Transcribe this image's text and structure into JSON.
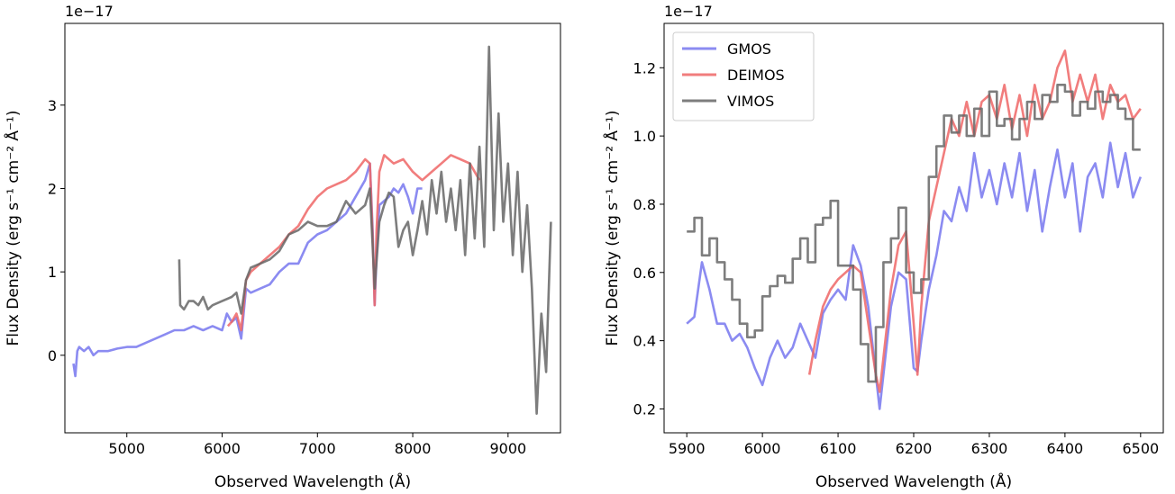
{
  "chart_data": [
    {
      "type": "line",
      "xlabel": "Observed Wavelength (Å)",
      "ylabel": "Flux Density (erg s⁻¹ cm⁻² Å⁻¹)",
      "offset_text": "1e−17",
      "xlim": [
        4350,
        9550
      ],
      "ylim": [
        -0.93,
        3.98
      ],
      "xticks": [
        5000,
        6000,
        7000,
        8000,
        9000
      ],
      "yticks": [
        0,
        1,
        2,
        3
      ],
      "grid": false,
      "series": [
        {
          "name": "GMOS",
          "color": "#7777ee",
          "step": false,
          "x": [
            4440,
            4460,
            4480,
            4500,
            4550,
            4600,
            4650,
            4700,
            4800,
            4900,
            5000,
            5100,
            5200,
            5300,
            5400,
            5500,
            5600,
            5700,
            5800,
            5900,
            6000,
            6050,
            6100,
            6150,
            6200,
            6250,
            6300,
            6400,
            6500,
            6600,
            6700,
            6800,
            6900,
            7000,
            7100,
            7200,
            7300,
            7400,
            7500,
            7550,
            7580,
            7600,
            7620,
            7650,
            7700,
            7750,
            7800,
            7850,
            7900,
            7950,
            8000,
            8050,
            8100
          ],
          "y": [
            -0.1,
            -0.25,
            0.05,
            0.1,
            0.05,
            0.1,
            0.0,
            0.05,
            0.05,
            0.08,
            0.1,
            0.1,
            0.15,
            0.2,
            0.25,
            0.3,
            0.3,
            0.35,
            0.3,
            0.35,
            0.3,
            0.5,
            0.4,
            0.45,
            0.2,
            0.8,
            0.75,
            0.8,
            0.85,
            1.0,
            1.1,
            1.1,
            1.35,
            1.45,
            1.5,
            1.6,
            1.7,
            1.9,
            2.1,
            2.3,
            1.5,
            0.6,
            1.2,
            1.8,
            1.85,
            1.9,
            2.0,
            1.95,
            2.05,
            1.9,
            1.7,
            2.0,
            2.0
          ]
        },
        {
          "name": "DEIMOS",
          "color": "#ee6666",
          "step": false,
          "x": [
            6060,
            6100,
            6150,
            6200,
            6250,
            6300,
            6400,
            6500,
            6600,
            6700,
            6800,
            6900,
            7000,
            7100,
            7200,
            7300,
            7400,
            7500,
            7550,
            7580,
            7600,
            7620,
            7650,
            7700,
            7800,
            7900,
            8000,
            8100,
            8200,
            8300,
            8400,
            8500,
            8600,
            8700
          ],
          "y": [
            0.35,
            0.4,
            0.5,
            0.3,
            0.9,
            1.0,
            1.1,
            1.2,
            1.3,
            1.45,
            1.55,
            1.75,
            1.9,
            2.0,
            2.05,
            2.1,
            2.2,
            2.35,
            2.3,
            1.4,
            0.6,
            1.5,
            2.2,
            2.4,
            2.3,
            2.35,
            2.2,
            2.1,
            2.2,
            2.3,
            2.4,
            2.35,
            2.3,
            2.1
          ]
        },
        {
          "name": "VIMOS",
          "color": "#666666",
          "step": false,
          "x": [
            5550,
            5560,
            5600,
            5650,
            5700,
            5750,
            5800,
            5850,
            5900,
            6000,
            6100,
            6150,
            6200,
            6250,
            6300,
            6400,
            6500,
            6600,
            6700,
            6800,
            6900,
            7000,
            7100,
            7200,
            7300,
            7400,
            7500,
            7550,
            7600,
            7650,
            7700,
            7750,
            7800,
            7850,
            7900,
            7950,
            8000,
            8050,
            8100,
            8150,
            8200,
            8250,
            8300,
            8350,
            8400,
            8450,
            8500,
            8550,
            8600,
            8650,
            8700,
            8750,
            8800,
            8850,
            8900,
            8950,
            9000,
            9050,
            9100,
            9150,
            9200,
            9250,
            9300,
            9350,
            9400,
            9450
          ],
          "y": [
            1.15,
            0.6,
            0.55,
            0.65,
            0.65,
            0.6,
            0.7,
            0.55,
            0.6,
            0.65,
            0.7,
            0.75,
            0.5,
            0.9,
            1.05,
            1.1,
            1.15,
            1.25,
            1.45,
            1.5,
            1.6,
            1.55,
            1.55,
            1.6,
            1.85,
            1.7,
            1.8,
            2.0,
            0.8,
            1.6,
            1.8,
            1.95,
            1.9,
            1.3,
            1.5,
            1.6,
            1.2,
            1.5,
            1.85,
            1.45,
            2.1,
            1.7,
            2.2,
            1.6,
            2.0,
            1.5,
            2.1,
            1.2,
            2.3,
            1.4,
            2.5,
            1.3,
            3.7,
            1.5,
            2.9,
            1.6,
            2.3,
            1.2,
            2.2,
            1.0,
            1.8,
            0.8,
            -0.7,
            0.5,
            -0.2,
            1.6
          ]
        }
      ]
    },
    {
      "type": "line",
      "xlabel": "Observed Wavelength (Å)",
      "ylabel": "Flux Density (erg s⁻¹ cm⁻² Å⁻¹)",
      "offset_text": "1e−17",
      "xlim": [
        5870,
        6530
      ],
      "ylim": [
        0.13,
        1.33
      ],
      "xticks": [
        5900,
        6000,
        6100,
        6200,
        6300,
        6400,
        6500
      ],
      "yticks": [
        0.2,
        0.4,
        0.6,
        0.8,
        1.0,
        1.2
      ],
      "grid": false,
      "legend_position": "top-left",
      "legend": [
        "GMOS",
        "DEIMOS",
        "VIMOS"
      ],
      "series": [
        {
          "name": "GMOS",
          "color": "#7777ee",
          "step": false,
          "x": [
            5900,
            5910,
            5920,
            5930,
            5940,
            5950,
            5960,
            5970,
            5980,
            5990,
            6000,
            6010,
            6020,
            6030,
            6040,
            6050,
            6060,
            6070,
            6080,
            6090,
            6100,
            6110,
            6120,
            6130,
            6140,
            6150,
            6155,
            6160,
            6170,
            6180,
            6190,
            6200,
            6205,
            6210,
            6220,
            6230,
            6240,
            6250,
            6260,
            6270,
            6280,
            6290,
            6300,
            6310,
            6320,
            6330,
            6340,
            6350,
            6360,
            6370,
            6380,
            6390,
            6400,
            6410,
            6420,
            6430,
            6440,
            6450,
            6460,
            6470,
            6480,
            6490,
            6500
          ],
          "y": [
            0.45,
            0.47,
            0.63,
            0.55,
            0.45,
            0.45,
            0.4,
            0.42,
            0.38,
            0.32,
            0.27,
            0.35,
            0.4,
            0.35,
            0.38,
            0.45,
            0.4,
            0.35,
            0.48,
            0.52,
            0.55,
            0.52,
            0.68,
            0.62,
            0.5,
            0.3,
            0.2,
            0.3,
            0.5,
            0.6,
            0.58,
            0.32,
            0.31,
            0.4,
            0.55,
            0.65,
            0.78,
            0.75,
            0.85,
            0.78,
            0.95,
            0.82,
            0.9,
            0.8,
            0.92,
            0.82,
            0.95,
            0.78,
            0.9,
            0.72,
            0.85,
            0.96,
            0.82,
            0.92,
            0.72,
            0.88,
            0.92,
            0.82,
            0.98,
            0.85,
            0.95,
            0.82,
            0.88
          ]
        },
        {
          "name": "DEIMOS",
          "color": "#ee6666",
          "step": false,
          "x": [
            6062,
            6070,
            6080,
            6090,
            6100,
            6110,
            6120,
            6130,
            6140,
            6150,
            6155,
            6160,
            6170,
            6180,
            6190,
            6200,
            6205,
            6210,
            6220,
            6230,
            6240,
            6250,
            6260,
            6270,
            6280,
            6290,
            6300,
            6310,
            6320,
            6330,
            6340,
            6350,
            6360,
            6370,
            6380,
            6390,
            6400,
            6410,
            6420,
            6430,
            6440,
            6450,
            6460,
            6470,
            6480,
            6490,
            6500
          ],
          "y": [
            0.3,
            0.4,
            0.5,
            0.55,
            0.58,
            0.6,
            0.62,
            0.6,
            0.45,
            0.3,
            0.25,
            0.35,
            0.55,
            0.68,
            0.72,
            0.45,
            0.3,
            0.5,
            0.75,
            0.85,
            0.95,
            1.05,
            1.0,
            1.1,
            1.0,
            1.1,
            1.12,
            1.05,
            1.15,
            1.02,
            1.12,
            1.0,
            1.15,
            1.05,
            1.1,
            1.2,
            1.25,
            1.1,
            1.18,
            1.1,
            1.18,
            1.05,
            1.15,
            1.1,
            1.12,
            1.05,
            1.08
          ]
        },
        {
          "name": "VIMOS",
          "color": "#666666",
          "step": true,
          "x": [
            5900,
            5910,
            5920,
            5930,
            5940,
            5950,
            5960,
            5970,
            5980,
            5990,
            6000,
            6010,
            6020,
            6030,
            6040,
            6050,
            6060,
            6070,
            6080,
            6090,
            6100,
            6110,
            6120,
            6130,
            6140,
            6150,
            6160,
            6170,
            6180,
            6190,
            6200,
            6210,
            6220,
            6230,
            6240,
            6250,
            6260,
            6270,
            6280,
            6290,
            6300,
            6310,
            6320,
            6330,
            6340,
            6350,
            6360,
            6370,
            6380,
            6390,
            6400,
            6410,
            6420,
            6430,
            6440,
            6450,
            6460,
            6470,
            6480,
            6490,
            6500
          ],
          "y": [
            0.72,
            0.76,
            0.65,
            0.7,
            0.63,
            0.58,
            0.52,
            0.45,
            0.41,
            0.43,
            0.53,
            0.56,
            0.59,
            0.57,
            0.64,
            0.7,
            0.63,
            0.74,
            0.76,
            0.81,
            0.62,
            0.62,
            0.55,
            0.39,
            0.28,
            0.44,
            0.63,
            0.7,
            0.79,
            0.6,
            0.54,
            0.58,
            0.88,
            0.97,
            1.06,
            1.01,
            1.06,
            1.0,
            1.08,
            1.0,
            1.13,
            1.03,
            1.05,
            0.99,
            1.05,
            1.1,
            1.05,
            1.12,
            1.1,
            1.15,
            1.13,
            1.06,
            1.1,
            1.08,
            1.13,
            1.1,
            1.12,
            1.08,
            1.05,
            0.96,
            0.96
          ]
        }
      ]
    }
  ]
}
